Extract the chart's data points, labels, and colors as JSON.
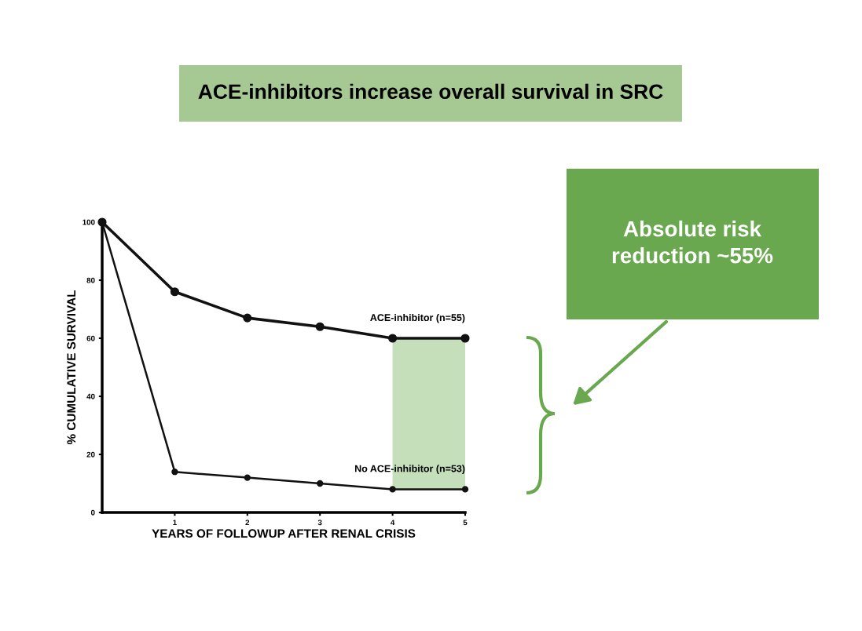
{
  "chart_data": {
    "type": "line",
    "title": "ACE-inhibitors increase overall survival in SRC",
    "xlabel": "YEARS OF FOLLOWUP AFTER RENAL CRISIS",
    "ylabel": "% CUMULATIVE SURVIVAL",
    "x": [
      0,
      1,
      2,
      3,
      4,
      5
    ],
    "series": [
      {
        "name": "ACE-inhibitor (n=55)",
        "color": "#111111",
        "values": [
          100,
          76,
          67,
          64,
          60,
          60
        ]
      },
      {
        "name": "No ACE-inhibitor (n=53)",
        "color": "#111111",
        "values": [
          100,
          14,
          12,
          10,
          8,
          8
        ]
      }
    ],
    "xlim": [
      0,
      5
    ],
    "xticks": [
      1,
      2,
      3,
      4,
      5
    ],
    "ylim": [
      0,
      100
    ],
    "yticks": [
      0,
      20,
      40,
      60,
      80,
      100
    ],
    "bands": [
      {
        "axis": "x",
        "from": 4,
        "to": 5,
        "color": "#c5dfba"
      }
    ],
    "annotations": [
      "Absolute risk reduction ~55%"
    ],
    "marker": "circle",
    "line_style": "solid",
    "grid": false,
    "legend": false
  }
}
